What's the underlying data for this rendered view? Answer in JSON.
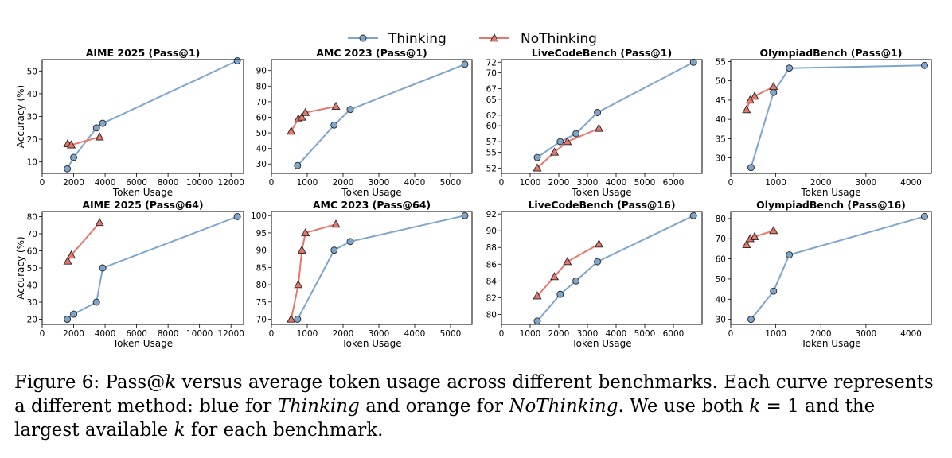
{
  "legend": [
    {
      "label": "Thinking",
      "color": "#7ea6cc",
      "marker": "circle"
    },
    {
      "label": "NoThinking",
      "color": "#e8776a",
      "marker": "triangle"
    }
  ],
  "chart_data": [
    {
      "type": "line",
      "title": "AIME 2025 (Pass@1)",
      "xlabel": "Token Usage",
      "ylabel": "Accuracy (%)",
      "xlim": [
        0,
        12800
      ],
      "ylim": [
        5,
        55
      ],
      "xticks": [
        0,
        2000,
        4000,
        6000,
        8000,
        10000,
        12000
      ],
      "yticks": [
        10,
        20,
        30,
        40,
        50
      ],
      "series": [
        {
          "name": "Thinking",
          "x": [
            1600,
            2000,
            3450,
            3850,
            12400
          ],
          "y": [
            7,
            12,
            25,
            27,
            54.5
          ]
        },
        {
          "name": "NoThinking",
          "x": [
            1620,
            1850,
            3650
          ],
          "y": [
            18,
            17.5,
            21
          ]
        }
      ]
    },
    {
      "type": "line",
      "title": "AMC 2023 (Pass@1)",
      "xlabel": "Token Usage",
      "ylabel": "",
      "xlim": [
        0,
        5600
      ],
      "ylim": [
        24,
        97
      ],
      "xticks": [
        0,
        1000,
        2000,
        3000,
        4000,
        5000
      ],
      "yticks": [
        30,
        40,
        50,
        60,
        70,
        80,
        90
      ],
      "series": [
        {
          "name": "Thinking",
          "x": [
            730,
            1750,
            2200,
            5400
          ],
          "y": [
            29,
            55,
            65,
            94
          ]
        },
        {
          "name": "NoThinking",
          "x": [
            550,
            750,
            850,
            950,
            1800
          ],
          "y": [
            51,
            59,
            60,
            63,
            67
          ]
        }
      ]
    },
    {
      "type": "line",
      "title": "LiveCodeBench (Pass@1)",
      "xlabel": "Token Usage",
      "ylabel": "",
      "xlim": [
        0,
        7000
      ],
      "ylim": [
        51,
        72.5
      ],
      "xticks": [
        0,
        1000,
        2000,
        3000,
        4000,
        5000,
        6000
      ],
      "yticks": [
        52,
        55,
        57,
        60,
        62,
        65,
        67,
        70,
        72
      ],
      "series": [
        {
          "name": "Thinking",
          "x": [
            1250,
            2050,
            2600,
            3350,
            6700
          ],
          "y": [
            54,
            57,
            58.5,
            62.5,
            72
          ]
        },
        {
          "name": "NoThinking",
          "x": [
            1250,
            1850,
            2300,
            3400
          ],
          "y": [
            52,
            55,
            57,
            59.5
          ]
        }
      ]
    },
    {
      "type": "line",
      "title": "OlympiadBench (Pass@1)",
      "xlabel": "Token Usage",
      "ylabel": "",
      "xlim": [
        0,
        4450
      ],
      "ylim": [
        26,
        55.5
      ],
      "xticks": [
        0,
        1000,
        2000,
        3000,
        4000
      ],
      "yticks": [
        30,
        35,
        40,
        45,
        50,
        55
      ],
      "series": [
        {
          "name": "Thinking",
          "x": [
            450,
            950,
            1300,
            4300
          ],
          "y": [
            27.5,
            47,
            53.3,
            54
          ]
        },
        {
          "name": "NoThinking",
          "x": [
            350,
            430,
            530,
            950
          ],
          "y": [
            42.5,
            45,
            46,
            48.5
          ]
        }
      ]
    },
    {
      "type": "line",
      "title": "AIME 2025 (Pass@64)",
      "xlabel": "Token Usage",
      "ylabel": "Accuracy (%)",
      "xlim": [
        0,
        12800
      ],
      "ylim": [
        17,
        83
      ],
      "xticks": [
        0,
        2000,
        4000,
        6000,
        8000,
        10000,
        12000
      ],
      "yticks": [
        20,
        30,
        40,
        50,
        60,
        70,
        80
      ],
      "series": [
        {
          "name": "Thinking",
          "x": [
            1600,
            2000,
            3450,
            3850,
            12400
          ],
          "y": [
            20,
            23,
            30,
            50,
            80
          ]
        },
        {
          "name": "NoThinking",
          "x": [
            1620,
            1850,
            3650
          ],
          "y": [
            54,
            57.5,
            76.5
          ]
        }
      ]
    },
    {
      "type": "line",
      "title": "AMC 2023 (Pass@64)",
      "xlabel": "Token Usage",
      "ylabel": "",
      "xlim": [
        0,
        5600
      ],
      "ylim": [
        68.5,
        101.2
      ],
      "xticks": [
        0,
        1000,
        2000,
        3000,
        4000,
        5000
      ],
      "yticks": [
        70,
        75,
        80,
        85,
        90,
        95,
        100
      ],
      "series": [
        {
          "name": "Thinking",
          "x": [
            730,
            1750,
            2200,
            5400
          ],
          "y": [
            70,
            90,
            92.5,
            100
          ]
        },
        {
          "name": "NoThinking",
          "x": [
            550,
            750,
            850,
            950,
            1800
          ],
          "y": [
            70,
            80,
            90,
            95,
            97.5
          ]
        }
      ]
    },
    {
      "type": "line",
      "title": "LiveCodeBench (Pass@16)",
      "xlabel": "Token Usage",
      "ylabel": "",
      "xlim": [
        0,
        7000
      ],
      "ylim": [
        78.8,
        92.3
      ],
      "xticks": [
        0,
        1000,
        2000,
        3000,
        4000,
        5000,
        6000
      ],
      "yticks": [
        80,
        82,
        84,
        86,
        88,
        90,
        92
      ],
      "series": [
        {
          "name": "Thinking",
          "x": [
            1250,
            2050,
            2600,
            3350,
            6700
          ],
          "y": [
            79.2,
            82.4,
            84,
            86.3,
            91.8
          ]
        },
        {
          "name": "NoThinking",
          "x": [
            1250,
            1850,
            2300,
            3400
          ],
          "y": [
            82.2,
            84.5,
            86.3,
            88.4
          ]
        }
      ]
    },
    {
      "type": "line",
      "title": "OlympiadBench (Pass@16)",
      "xlabel": "Token Usage",
      "ylabel": "",
      "xlim": [
        0,
        4450
      ],
      "ylim": [
        27.5,
        83.5
      ],
      "xticks": [
        0,
        1000,
        2000,
        3000,
        4000
      ],
      "yticks": [
        30,
        40,
        50,
        60,
        70,
        80
      ],
      "series": [
        {
          "name": "Thinking",
          "x": [
            450,
            950,
            1300,
            4300
          ],
          "y": [
            30,
            44,
            62,
            81
          ]
        },
        {
          "name": "NoThinking",
          "x": [
            350,
            430,
            530,
            950
          ],
          "y": [
            67,
            70,
            71,
            74
          ]
        }
      ]
    }
  ],
  "caption": {
    "p1": "Figure 6: Pass@",
    "k1": "k",
    "p2": " versus average token usage across different benchmarks. Each curve represents a different method: blue for ",
    "m1": "Thinking",
    "p3": " and orange for ",
    "m2": "NoThinking",
    "p4": ". We use both ",
    "k2": "k",
    "p5": " = 1 and the largest available ",
    "k3": "k",
    "p6": " for each benchmark."
  }
}
